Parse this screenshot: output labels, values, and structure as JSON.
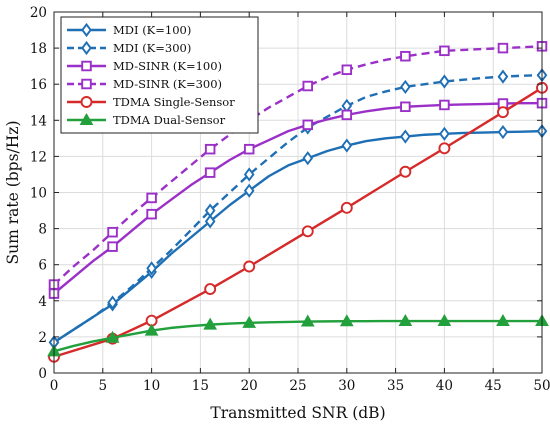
{
  "chart_data": {
    "type": "line",
    "xlabel": "Transmitted SNR (dB)",
    "ylabel": "Sum rate (bps/Hz)",
    "xlim": [
      0,
      50
    ],
    "ylim": [
      0,
      20
    ],
    "xticks": [
      "0",
      "5",
      "10",
      "15",
      "20",
      "25",
      "30",
      "35",
      "40",
      "45",
      "50"
    ],
    "yticks": [
      "0",
      "2",
      "4",
      "6",
      "8",
      "10",
      "12",
      "14",
      "16",
      "18",
      "20"
    ],
    "grid": true,
    "legend_position": "top-left",
    "series": [
      {
        "name": "MDI (K=100)",
        "color": "#1f6fb5",
        "dash": "solid",
        "marker": "diamond-open",
        "x": [
          0,
          2,
          4,
          6,
          8,
          10,
          12,
          14,
          16,
          18,
          20,
          22,
          24,
          26,
          28,
          30,
          32,
          34,
          36,
          38,
          40,
          42,
          44,
          46,
          48,
          50
        ],
        "y": [
          1.7,
          2.4,
          3.1,
          3.8,
          4.7,
          5.6,
          6.6,
          7.5,
          8.4,
          9.3,
          10.1,
          10.9,
          11.5,
          11.9,
          12.3,
          12.6,
          12.85,
          13.0,
          13.1,
          13.2,
          13.25,
          13.3,
          13.32,
          13.35,
          13.37,
          13.4
        ],
        "markers_x": [
          0,
          6,
          10,
          16,
          20,
          26,
          30,
          36,
          40,
          46,
          50
        ]
      },
      {
        "name": "MDI (K=300)",
        "color": "#1f6fb5",
        "dash": "dashed",
        "marker": "diamond-open",
        "x": [
          0,
          2,
          4,
          6,
          8,
          10,
          12,
          14,
          16,
          18,
          20,
          22,
          24,
          26,
          28,
          30,
          32,
          34,
          36,
          38,
          40,
          42,
          44,
          46,
          48,
          50
        ],
        "y": [
          1.7,
          2.4,
          3.1,
          3.9,
          4.8,
          5.8,
          6.8,
          7.9,
          9.0,
          10.0,
          11.0,
          11.9,
          12.8,
          13.6,
          14.2,
          14.8,
          15.3,
          15.6,
          15.85,
          16.0,
          16.15,
          16.25,
          16.35,
          16.42,
          16.47,
          16.5
        ],
        "markers_x": [
          0,
          6,
          10,
          16,
          20,
          26,
          30,
          36,
          40,
          46,
          50
        ]
      },
      {
        "name": "MD-SINR (K=100)",
        "color": "#9b30c8",
        "dash": "solid",
        "marker": "square-open",
        "x": [
          0,
          2,
          4,
          6,
          8,
          10,
          12,
          14,
          16,
          18,
          20,
          22,
          24,
          26,
          28,
          30,
          32,
          34,
          36,
          38,
          40,
          42,
          44,
          46,
          48,
          50
        ],
        "y": [
          4.4,
          5.3,
          6.2,
          7.0,
          7.9,
          8.8,
          9.6,
          10.4,
          11.1,
          11.8,
          12.4,
          12.9,
          13.4,
          13.75,
          14.05,
          14.3,
          14.5,
          14.65,
          14.75,
          14.8,
          14.85,
          14.88,
          14.9,
          14.93,
          14.95,
          14.95
        ],
        "markers_x": [
          0,
          6,
          10,
          16,
          20,
          26,
          30,
          36,
          40,
          46,
          50
        ]
      },
      {
        "name": "MD-SINR (K=300)",
        "color": "#9b30c8",
        "dash": "dashed",
        "marker": "square-open",
        "x": [
          0,
          2,
          4,
          6,
          8,
          10,
          12,
          14,
          16,
          18,
          20,
          22,
          24,
          26,
          28,
          30,
          32,
          34,
          36,
          38,
          40,
          42,
          44,
          46,
          48,
          50
        ],
        "y": [
          4.9,
          5.9,
          6.8,
          7.8,
          8.8,
          9.7,
          10.6,
          11.5,
          12.4,
          13.2,
          14.0,
          14.7,
          15.3,
          15.9,
          16.4,
          16.8,
          17.1,
          17.35,
          17.55,
          17.7,
          17.85,
          17.9,
          17.95,
          18.0,
          18.05,
          18.1
        ],
        "markers_x": [
          0,
          6,
          10,
          16,
          20,
          26,
          30,
          36,
          40,
          46,
          50
        ]
      },
      {
        "name": "TDMA Single-Sensor",
        "color": "#d62a2a",
        "dash": "solid",
        "marker": "circle-open",
        "x": [
          0,
          6,
          10,
          16,
          20,
          26,
          30,
          36,
          40,
          46,
          50
        ],
        "y": [
          0.9,
          1.9,
          2.9,
          4.65,
          5.9,
          7.85,
          9.15,
          11.15,
          12.45,
          14.45,
          15.8
        ],
        "markers_x": [
          0,
          6,
          10,
          16,
          20,
          26,
          30,
          36,
          40,
          46,
          50
        ]
      },
      {
        "name": "TDMA Dual-Sensor",
        "color": "#22a03c",
        "dash": "solid",
        "marker": "triangle-filled",
        "x": [
          0,
          2,
          4,
          6,
          8,
          10,
          12,
          14,
          16,
          18,
          20,
          22,
          24,
          26,
          28,
          30,
          32,
          34,
          36,
          38,
          40,
          42,
          44,
          46,
          48,
          50
        ],
        "y": [
          1.2,
          1.5,
          1.75,
          1.95,
          2.15,
          2.35,
          2.5,
          2.6,
          2.68,
          2.74,
          2.78,
          2.81,
          2.83,
          2.85,
          2.86,
          2.87,
          2.87,
          2.88,
          2.88,
          2.88,
          2.88,
          2.88,
          2.88,
          2.88,
          2.88,
          2.88
        ],
        "markers_x": [
          0,
          6,
          10,
          16,
          20,
          26,
          30,
          36,
          40,
          46,
          50
        ]
      }
    ]
  }
}
